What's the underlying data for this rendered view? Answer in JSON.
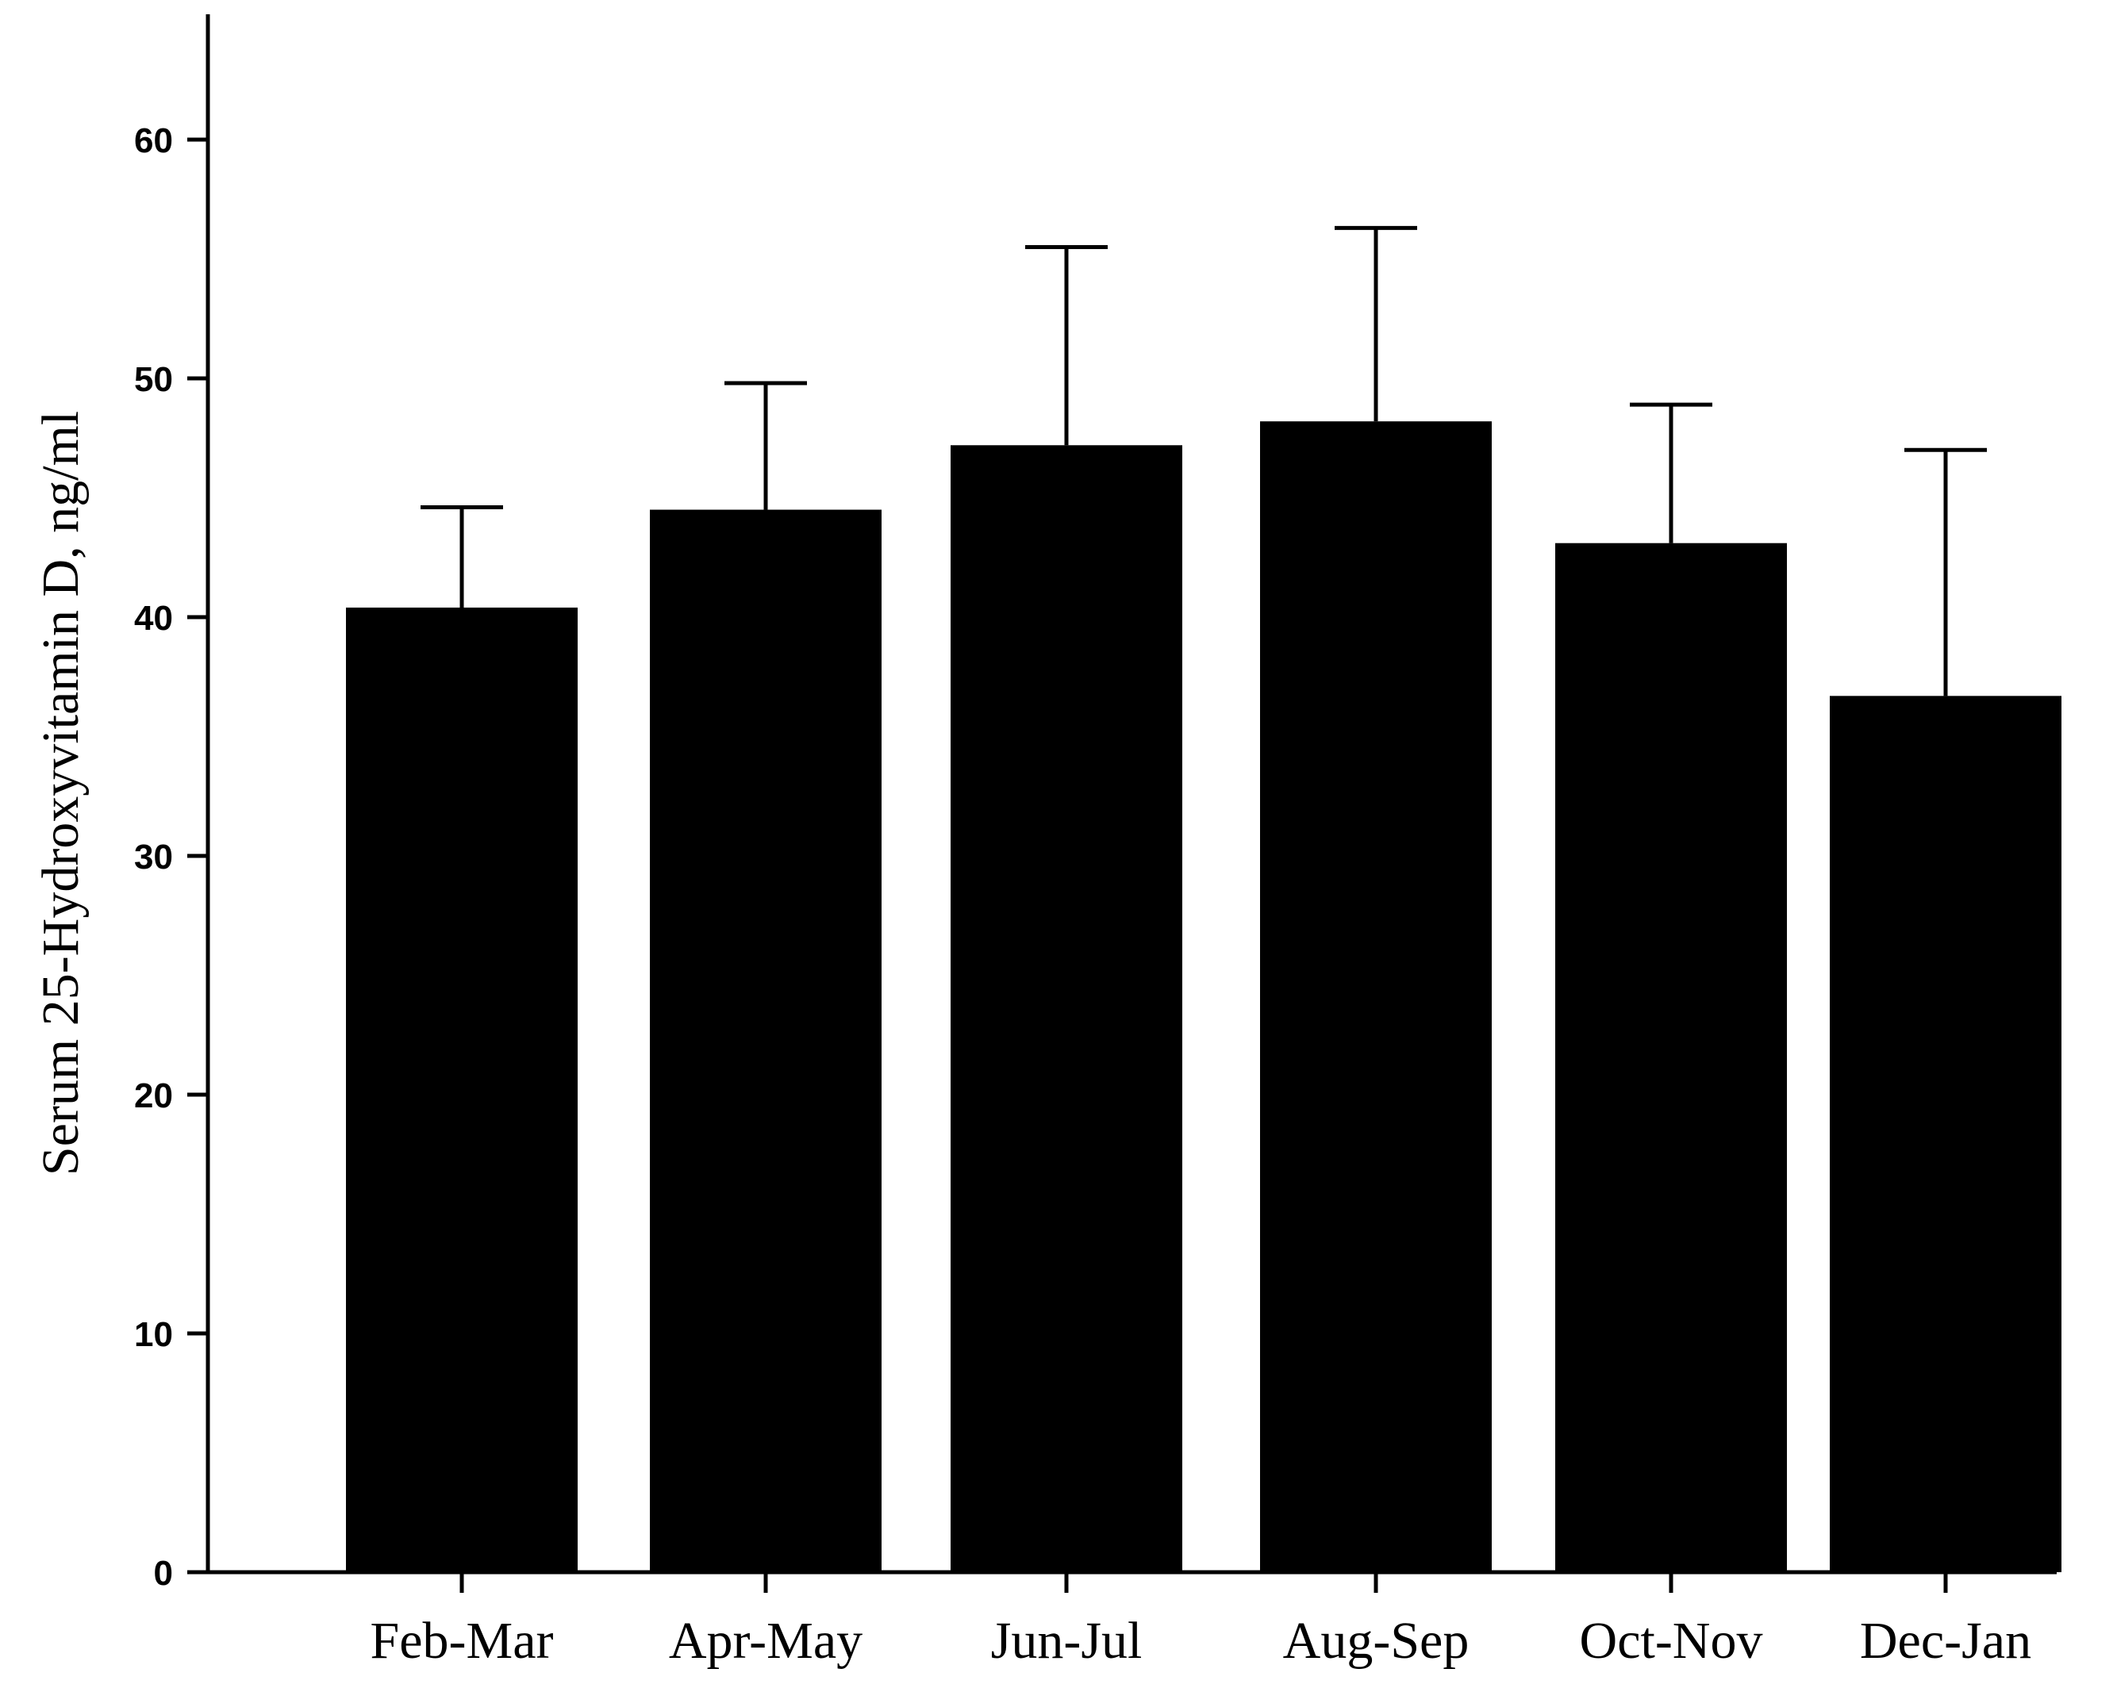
{
  "chart_data": {
    "type": "bar",
    "title": "",
    "xlabel": "",
    "ylabel": "Serum 25-Hydroxyvitamin D, ng/ml",
    "categories": [
      "Feb-Mar",
      "Apr-May",
      "Jun-Jul",
      "Aug-Sep",
      "Oct-Nov",
      "Dec-Jan"
    ],
    "values": [
      40.4,
      44.5,
      47.2,
      48.2,
      43.1,
      36.7
    ],
    "error_upper": [
      44.6,
      49.8,
      55.5,
      56.3,
      48.9,
      47.0
    ],
    "yticks": [
      0,
      10,
      20,
      30,
      40,
      50,
      60
    ],
    "ylim": [
      0,
      65
    ],
    "grid": false,
    "bar_color": "#000000"
  }
}
